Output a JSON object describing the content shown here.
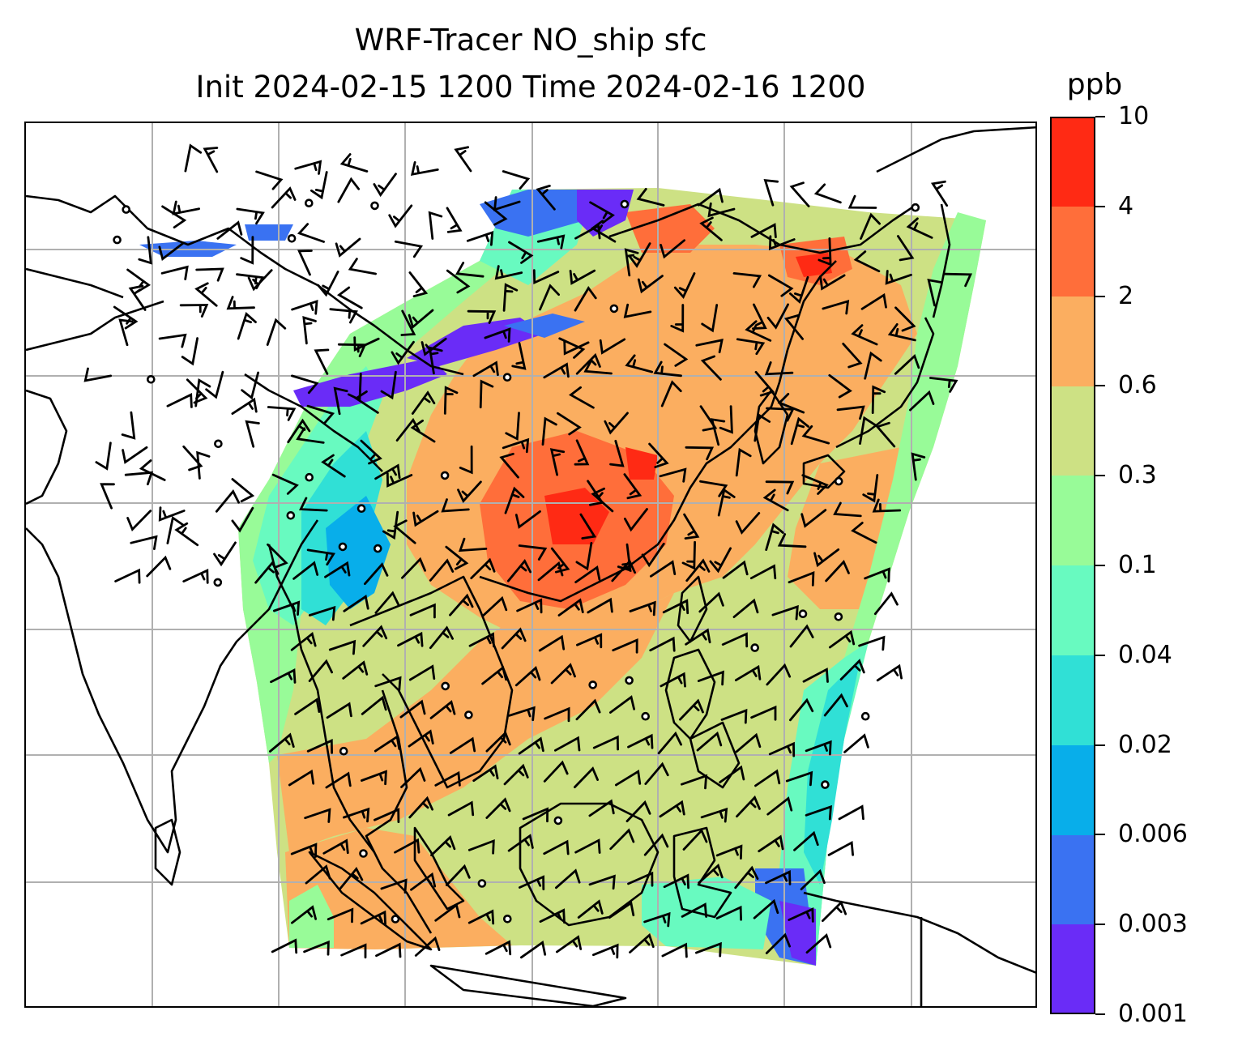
{
  "title": {
    "line1": "WRF-Tracer NO_ship sfc",
    "line2": "Init 2024-02-15 1200 Time 2024-02-16 1200"
  },
  "colorbar": {
    "unit": "ppb",
    "labels": [
      "0.001",
      "0.003",
      "0.006",
      "0.02",
      "0.04",
      "0.1",
      "0.3",
      "0.6",
      "2",
      "4",
      "10"
    ],
    "colors": [
      "#6a2cf7",
      "#3a72f2",
      "#08aeea",
      "#30e0d6",
      "#68fac0",
      "#98fb98",
      "#cde184",
      "#fbae60",
      "#ff6e3a",
      "#ff2a14"
    ]
  },
  "map": {
    "field_colors": {
      "very_low": "#6a2cf7",
      "low": "#3a72f2",
      "low_mid": "#08aeea",
      "teal": "#30e0d6",
      "aqua": "#68fac0",
      "green": "#98fb98",
      "khaki": "#cde184",
      "orange": "#fbae60",
      "dark_orange": "#ff6e3a",
      "red": "#ff2a14"
    },
    "gridline_color": "#b0b0b0",
    "coastline_color": "#000000",
    "wind_barbs": true
  }
}
